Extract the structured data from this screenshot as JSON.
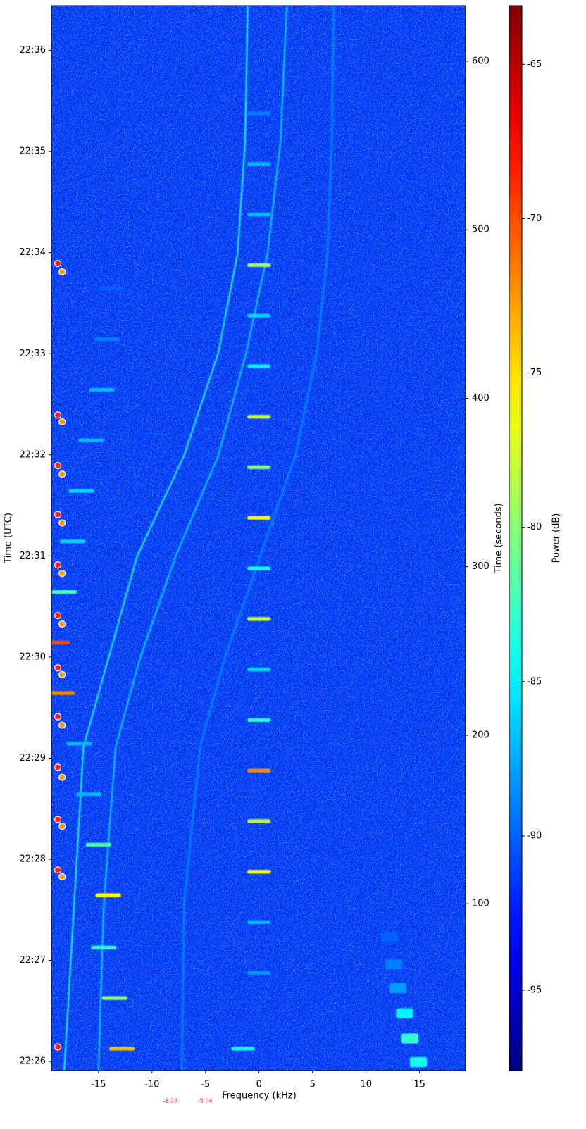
{
  "chart_data": {
    "type": "spectrogram",
    "xlabel": "Frequency (kHz)",
    "ylabel": "Time (UTC)",
    "y2label": "Time (seconds)",
    "colorbar_label": "Power (dB)",
    "colormap": "jet",
    "xlim": [
      -19.4,
      19.3
    ],
    "xticks": [
      -15,
      -10,
      -5,
      0,
      5,
      10,
      15
    ],
    "ylim": [
      1,
      633
    ],
    "yticks": [
      {
        "value": 6.4,
        "label": "22:26"
      },
      {
        "value": 66.4,
        "label": "22:27"
      },
      {
        "value": 126.4,
        "label": "22:28"
      },
      {
        "value": 186.4,
        "label": "22:29"
      },
      {
        "value": 246.4,
        "label": "22:30"
      },
      {
        "value": 306.4,
        "label": "22:31"
      },
      {
        "value": 366.4,
        "label": "22:32"
      },
      {
        "value": 426.4,
        "label": "22:33"
      },
      {
        "value": 486.4,
        "label": "22:34"
      },
      {
        "value": 546.4,
        "label": "22:35"
      },
      {
        "value": 606.4,
        "label": "22:36"
      }
    ],
    "y2lim": [
      1,
      633
    ],
    "y2ticks": [
      100,
      200,
      300,
      400,
      500,
      600
    ],
    "clim": [
      -97.6,
      -63.1
    ],
    "cticks": [
      -65,
      -70,
      -75,
      -80,
      -85,
      -90,
      -95
    ],
    "noise_floor": -92,
    "traces": [
      {
        "power": -84,
        "x": [
          -18.2,
          -16.4,
          -11.4,
          -7.0,
          -3.8,
          -2.0,
          -1.3,
          -1.05
        ],
        "t": [
          1,
          193,
          306,
          366,
          427,
          486,
          552,
          633
        ]
      },
      {
        "power": -86,
        "x": [
          -15.0,
          -14.5,
          -13.4,
          -11.1,
          -7.8,
          -3.8,
          -1.2,
          0.8,
          2.0,
          2.6
        ],
        "t": [
          1,
          100,
          193,
          246,
          306,
          366,
          427,
          486,
          552,
          633
        ]
      },
      {
        "power": -89,
        "x": [
          -7.2,
          -7.0,
          -5.5,
          -3.2,
          0.1,
          3.4,
          5.4,
          6.4,
          6.8,
          7.0
        ],
        "t": [
          1,
          100,
          193,
          246,
          306,
          366,
          427,
          486,
          552,
          633
        ]
      }
    ],
    "bursts": [
      {
        "width": 2.2,
        "duration": 2.2,
        "x": [
          0,
          0,
          0,
          0,
          0,
          0,
          0,
          0,
          0,
          0,
          0,
          0,
          0,
          0,
          0,
          0,
          0,
          0,
          -1.5
        ],
        "t": [
          59,
          89,
          119,
          149,
          179,
          209,
          239,
          269,
          299,
          329,
          359,
          389,
          419,
          449,
          479,
          509,
          539,
          569,
          14
        ],
        "power": [
          -88,
          -87,
          -76,
          -78,
          -72,
          -83,
          -86,
          -78,
          -84,
          -76,
          -80,
          -78,
          -85,
          -86,
          -79,
          -87,
          -87,
          -89,
          -84
        ]
      },
      {
        "width": 2.4,
        "duration": 2.2,
        "x": [
          -12.8,
          -13.5,
          -14.5,
          -14.1,
          -15.0,
          -15.9,
          -16.8,
          -18.4,
          -18.9,
          -18.2,
          -17.4,
          -16.6,
          -15.7,
          -14.7,
          -14.2,
          -13.8
        ],
        "t": [
          14,
          44,
          74,
          105,
          135,
          165,
          195,
          225,
          255,
          285,
          315,
          345,
          375,
          405,
          435,
          465
        ],
        "power": [
          -74,
          -80,
          -83,
          -76,
          -82,
          -87,
          -87,
          -72,
          -70,
          -82,
          -86,
          -86,
          -87,
          -87,
          -89,
          -90
        ]
      },
      {
        "width": 1.6,
        "duration": 6,
        "x": [
          14.9,
          14.1,
          13.6,
          13.0,
          12.6,
          12.2
        ],
        "t": [
          6,
          20,
          35,
          50,
          64,
          80
        ],
        "power": [
          -84,
          -83,
          -85,
          -88,
          -89,
          -90
        ]
      }
    ],
    "markers": [
      {
        "color": "#ff2020",
        "x": [
          -18.8,
          -18.8,
          -18.8,
          -18.8,
          -18.8,
          -18.8,
          -18.8,
          -18.8,
          -18.8,
          -18.8,
          -18.8,
          -18.8
        ],
        "t": [
          480,
          390,
          360,
          331,
          301,
          271,
          240,
          211,
          181,
          150,
          120,
          15
        ]
      },
      {
        "color": "#ff9a00",
        "x": [
          -18.4,
          -18.4,
          -18.4,
          -18.4,
          -18.4,
          -18.4,
          -18.4,
          -18.4,
          -18.4,
          -18.4,
          -18.4
        ],
        "t": [
          475,
          386,
          355,
          326,
          296,
          266,
          236,
          206,
          175,
          146,
          116
        ]
      }
    ],
    "annotations": [
      {
        "text": "-8.28",
        "x": -8.28
      },
      {
        "text": "-5.04",
        "x": -5.04
      }
    ]
  }
}
